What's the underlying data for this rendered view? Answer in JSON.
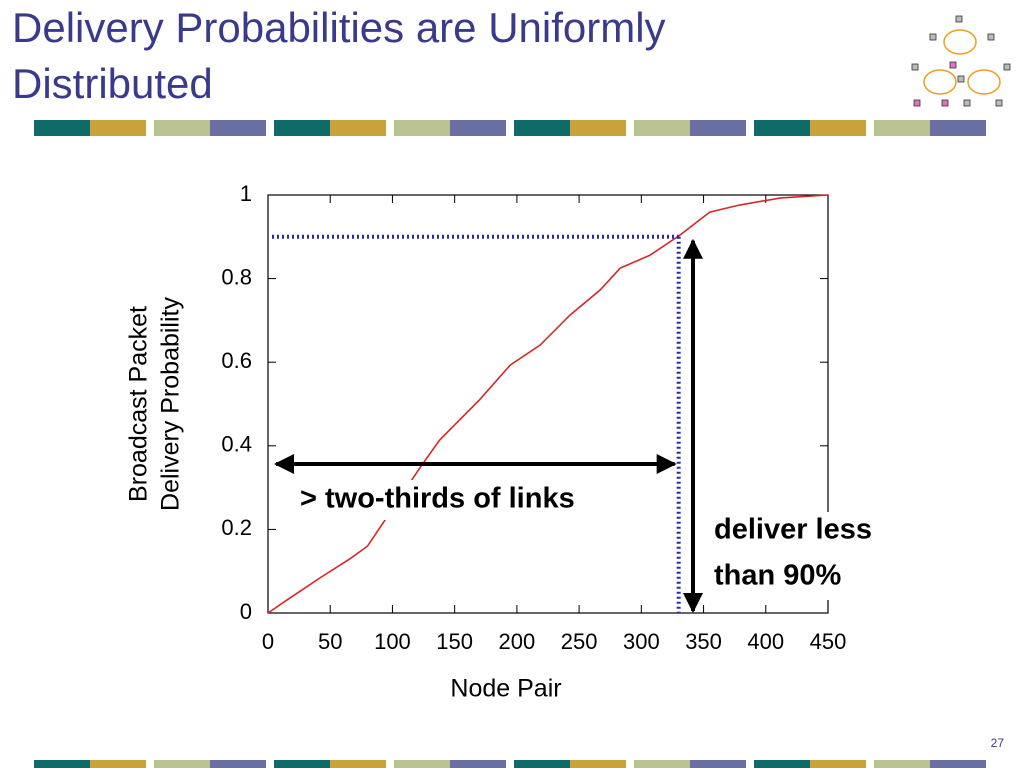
{
  "slide_title": "Delivery Probabilities are Uniformly Distributed",
  "page_number": "27",
  "chart_data": {
    "type": "line",
    "xlabel": "Node Pair",
    "ylabel": [
      "Broadcast Packet",
      "Delivery Probability"
    ],
    "x": [
      0,
      17.7,
      41.8,
      66,
      80,
      122,
      138,
      170,
      194.6,
      218.7,
      242.8,
      267,
      283,
      307,
      331,
      355,
      379,
      412,
      450
    ],
    "values": [
      0,
      0.036,
      0.084,
      0.13,
      0.16,
      0.347,
      0.414,
      0.51,
      0.593,
      0.641,
      0.713,
      0.773,
      0.825,
      0.856,
      0.904,
      0.959,
      0.976,
      0.993,
      1
    ],
    "color": "#d62728",
    "xlim": [
      0,
      450
    ],
    "ylim": [
      0,
      1
    ],
    "xticks": [
      0,
      50,
      100,
      150,
      200,
      250,
      300,
      350,
      400,
      450
    ],
    "yticks": [
      0,
      0.2,
      0.4,
      0.6,
      0.8,
      1
    ],
    "threshold_x": 330,
    "threshold_y": 0.9,
    "annotations": [
      "> two-thirds of links",
      "deliver less",
      "than 90%"
    ]
  }
}
